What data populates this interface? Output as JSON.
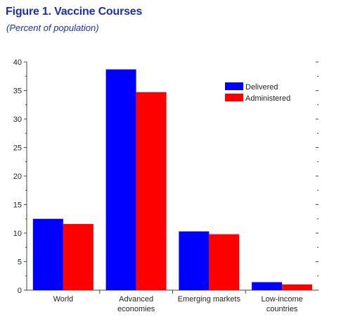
{
  "chart_data": {
    "type": "bar",
    "title": "Figure 1.  Vaccine Courses",
    "subtitle": "(Percent of population)",
    "categories": [
      "World",
      "Advanced economies",
      "Emerging markets",
      "Low-income countries"
    ],
    "category_lines": [
      [
        "World"
      ],
      [
        "Advanced",
        "economies"
      ],
      [
        "Emerging markets"
      ],
      [
        "Low-income",
        "countries"
      ]
    ],
    "series": [
      {
        "name": "Delivered",
        "color": "#0000ff",
        "values": [
          12.5,
          38.7,
          10.3,
          1.4
        ]
      },
      {
        "name": "Administered",
        "color": "#ff0000",
        "values": [
          11.6,
          34.7,
          9.8,
          1.0
        ]
      }
    ],
    "ylim": [
      0,
      40
    ],
    "yticks": [
      0,
      5,
      10,
      15,
      20,
      25,
      30,
      35,
      40
    ],
    "xlabel": "",
    "ylabel": "",
    "grid": false,
    "legend_position": "top-right"
  }
}
